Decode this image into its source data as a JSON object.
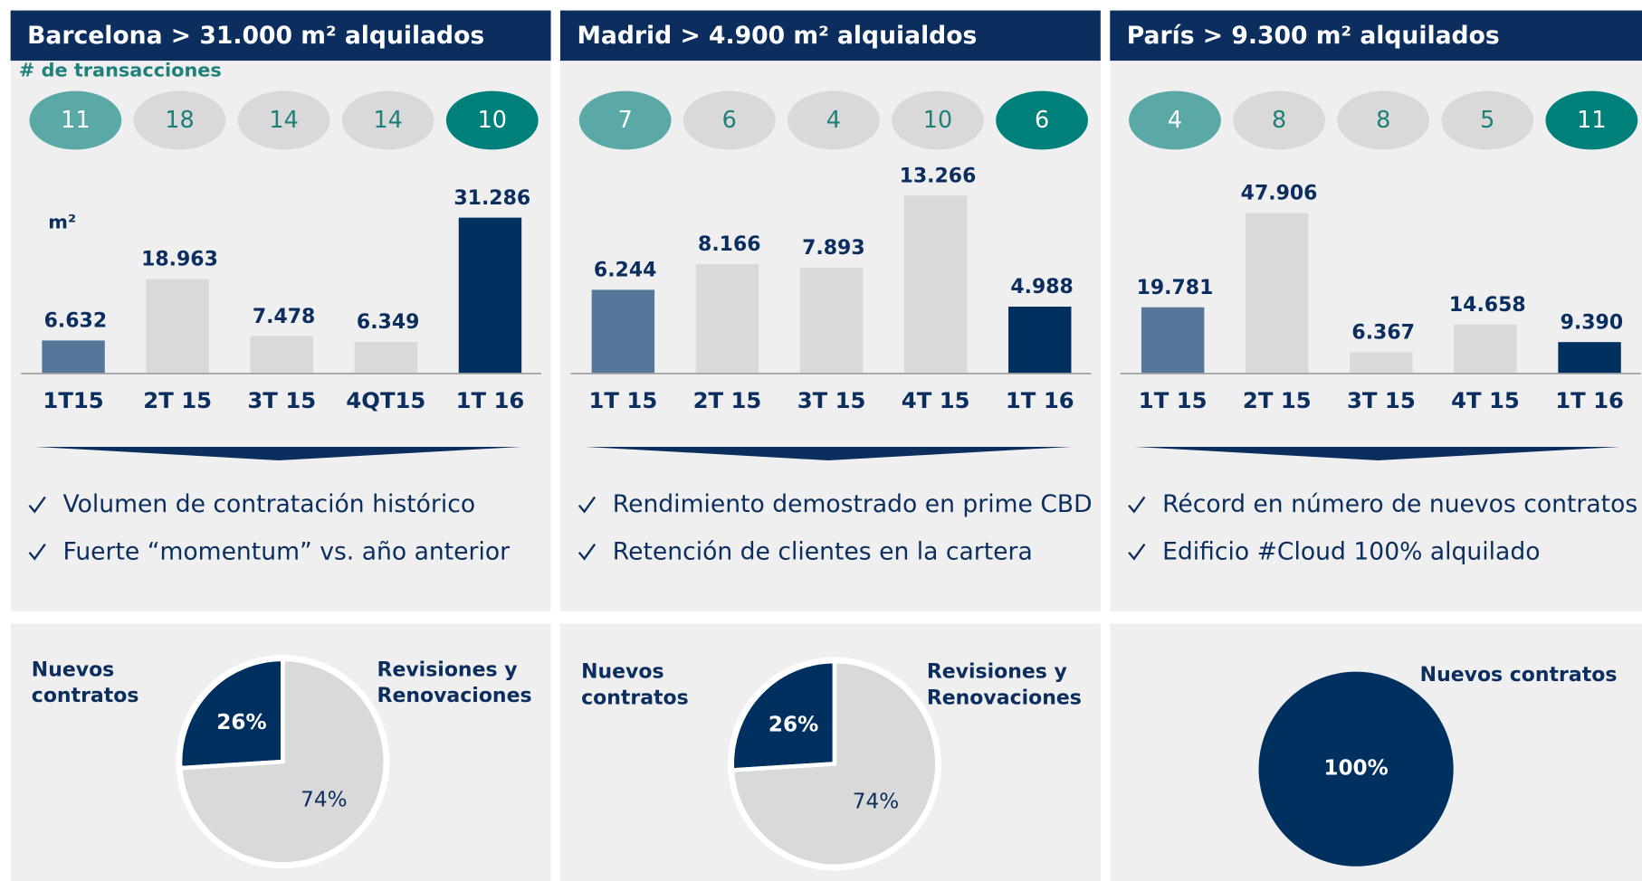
{
  "chart_data": [
    {
      "type": "bar",
      "title": "Barcelona > 31.000 m² alquilados",
      "counts_label": "# de transacciones",
      "counts": [
        11,
        18,
        14,
        14,
        10
      ],
      "count_colors": [
        "#5aa9a6",
        "#d9d9d9",
        "#d9d9d9",
        "#d9d9d9",
        "#00807b"
      ],
      "unit_label": "m²",
      "categories": [
        "1T15",
        "2T 15",
        "3T 15",
        "4QT15",
        "1T 16"
      ],
      "values": [
        6632,
        18963,
        7478,
        6349,
        31286
      ],
      "value_labels": [
        "6.632",
        "18.963",
        "7.478",
        "6.349",
        "31.286"
      ],
      "colors": [
        "#56769a",
        "#d9d9d9",
        "#d9d9d9",
        "#d9d9d9",
        "#00305f"
      ],
      "ylim": [
        0,
        35700
      ],
      "notes": [
        "Volumen de contratación histórico",
        "Fuerte “momentum” vs. año anterior"
      ]
    },
    {
      "type": "bar",
      "title": "Madrid > 4.900 m² alquialdos",
      "counts": [
        7,
        6,
        4,
        10,
        6
      ],
      "count_colors": [
        "#5aa9a6",
        "#d9d9d9",
        "#d9d9d9",
        "#d9d9d9",
        "#00807b"
      ],
      "categories": [
        "1T 15",
        "2T 15",
        "3T 15",
        "4T 15",
        "1T 16"
      ],
      "values": [
        6244,
        8166,
        7893,
        13266,
        4988
      ],
      "value_labels": [
        "6.244",
        "8.166",
        "7.893",
        "13.266",
        "4.988"
      ],
      "colors": [
        "#56769a",
        "#d9d9d9",
        "#d9d9d9",
        "#d9d9d9",
        "#00305f"
      ],
      "ylim": [
        0,
        13266
      ],
      "notes": [
        "Rendimiento demostrado en prime CBD",
        "Retención de clientes en la cartera"
      ]
    },
    {
      "type": "bar",
      "title": "París > 9.300 m² alquilados",
      "counts": [
        4,
        8,
        8,
        5,
        11
      ],
      "count_colors": [
        "#5aa9a6",
        "#d9d9d9",
        "#d9d9d9",
        "#d9d9d9",
        "#00807b"
      ],
      "categories": [
        "1T 15",
        "2T 15",
        "3T 15",
        "4T 15",
        "1T 16"
      ],
      "values": [
        19781,
        47906,
        6367,
        14658,
        9390
      ],
      "value_labels": [
        "19.781",
        "47.906",
        "6.367",
        "14.658",
        "9.390"
      ],
      "colors": [
        "#56769a",
        "#d9d9d9",
        "#d9d9d9",
        "#d9d9d9",
        "#00305f"
      ],
      "ylim": [
        0,
        53100
      ],
      "notes": [
        "Récord en número de nuevos contratos",
        "Edificio #Cloud 100% alquilado"
      ]
    },
    {
      "type": "pie",
      "categories": [
        "Nuevos contratos",
        "Revisiones y Renovaciones"
      ],
      "values": [
        26,
        74
      ],
      "value_labels": [
        "26%",
        "74%"
      ],
      "colors": [
        "#00305f",
        "#d9d9d9"
      ]
    },
    {
      "type": "pie",
      "categories": [
        "Nuevos contratos",
        "Revisiones y Renovaciones"
      ],
      "values": [
        26,
        74
      ],
      "value_labels": [
        "26%",
        "74%"
      ],
      "colors": [
        "#00305f",
        "#d9d9d9"
      ]
    },
    {
      "type": "pie",
      "categories": [
        "Nuevos contratos"
      ],
      "values": [
        100
      ],
      "value_labels": [
        "100%"
      ],
      "colors": [
        "#00305f"
      ]
    }
  ]
}
